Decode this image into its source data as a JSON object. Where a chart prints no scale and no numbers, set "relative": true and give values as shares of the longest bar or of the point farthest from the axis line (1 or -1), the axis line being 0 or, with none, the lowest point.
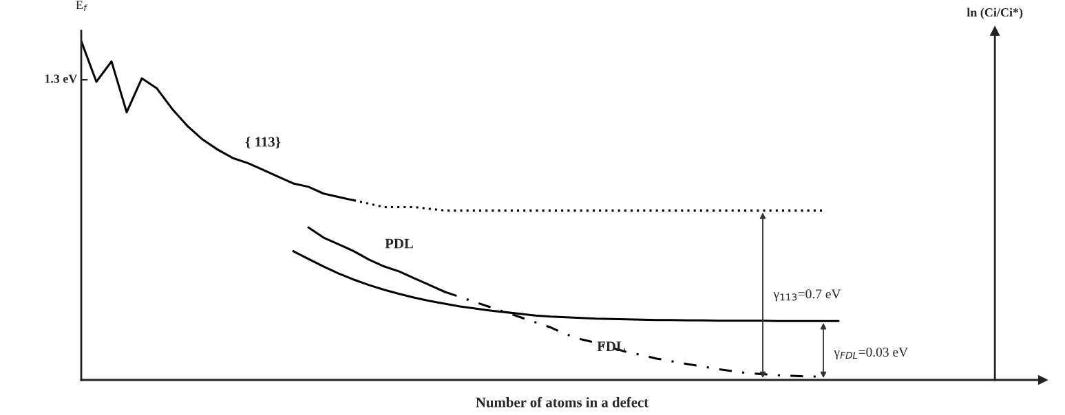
{
  "chart_data": {
    "type": "line",
    "relative": true,
    "ylabel": "E$_{f}$",
    "xlabel": "Number of atoms in a defect",
    "categories": [
      null,
      null,
      null,
      null,
      null,
      null,
      null,
      null,
      null,
      null,
      null,
      null,
      null,
      null,
      null,
      null,
      null,
      null,
      null,
      null,
      null,
      null,
      null,
      null,
      null,
      null,
      null,
      null,
      null,
      null,
      null,
      null,
      null,
      null,
      null,
      null,
      null,
      null,
      null,
      null,
      null,
      null,
      null,
      null,
      null,
      null,
      null,
      null,
      null,
      null,
      null
    ],
    "series": [
      {
        "name": "{ 113}",
        "color": "#000000",
        "line_style": "solid",
        "values": [
          1.0,
          0.88,
          0.94,
          0.79,
          0.89,
          0.86,
          0.8,
          0.75,
          0.71,
          0.68,
          0.655,
          0.64,
          0.62,
          0.6,
          0.58,
          0.57,
          0.55,
          0.54,
          0.53,
          null,
          null,
          null,
          null,
          null,
          null,
          null,
          null,
          null,
          null,
          null,
          null,
          null,
          null,
          null,
          null,
          null,
          null,
          null,
          null,
          null,
          null,
          null,
          null,
          null,
          null,
          null,
          null,
          null,
          null,
          null,
          null
        ]
      },
      {
        "color": "#000000",
        "line_style": "dotted",
        "values": [
          null,
          null,
          null,
          null,
          null,
          null,
          null,
          null,
          null,
          null,
          null,
          null,
          null,
          null,
          null,
          null,
          null,
          null,
          0.53,
          0.52,
          0.51,
          0.51,
          0.51,
          0.505,
          0.5,
          0.5,
          0.5,
          0.5,
          0.5,
          0.5,
          0.5,
          0.5,
          0.5,
          0.5,
          0.5,
          0.5,
          0.5,
          0.5,
          0.5,
          0.5,
          0.5,
          0.5,
          0.5,
          0.5,
          0.5,
          0.5,
          0.5,
          0.5,
          0.5,
          0.5,
          null
        ]
      },
      {
        "name": "PDL",
        "color": "#000000",
        "line_style": "solid",
        "values": [
          null,
          null,
          null,
          null,
          null,
          null,
          null,
          null,
          null,
          null,
          null,
          null,
          null,
          null,
          null,
          0.45,
          0.42,
          0.4,
          0.38,
          0.355,
          0.335,
          0.32,
          0.3,
          0.28,
          0.26,
          null,
          null,
          null,
          null,
          null,
          null,
          null,
          null,
          null,
          null,
          null,
          null,
          null,
          null,
          null,
          null,
          null,
          null,
          null,
          null,
          null,
          null,
          null,
          null,
          null,
          null
        ]
      },
      {
        "color": "#000000",
        "line_style": "dashed",
        "values": [
          null,
          null,
          null,
          null,
          null,
          null,
          null,
          null,
          null,
          null,
          null,
          null,
          null,
          null,
          null,
          null,
          null,
          null,
          null,
          null,
          null,
          null,
          null,
          null,
          0.26,
          0.245,
          0.23,
          0.215,
          0.2,
          0.185,
          0.17,
          0.155,
          0.135,
          0.12,
          0.11,
          0.095,
          0.083,
          0.073,
          0.063,
          0.055,
          0.047,
          0.04,
          0.032,
          0.026,
          0.02,
          0.017,
          0.014,
          0.012,
          0.01,
          0.01,
          null
        ]
      },
      {
        "name": "FDL",
        "color": "#000000",
        "line_style": "solid",
        "values": [
          null,
          null,
          null,
          null,
          null,
          null,
          null,
          null,
          null,
          null,
          null,
          null,
          null,
          null,
          0.38,
          0.357,
          0.335,
          0.314,
          0.296,
          0.28,
          0.266,
          0.254,
          0.243,
          0.233,
          0.225,
          0.217,
          0.211,
          0.205,
          0.2,
          0.195,
          0.19,
          0.187,
          0.185,
          0.183,
          0.181,
          0.18,
          0.179,
          0.178,
          0.177,
          0.177,
          0.176,
          0.176,
          0.175,
          0.175,
          0.175,
          0.175,
          0.174,
          0.174,
          0.174,
          0.174,
          0.174
        ]
      }
    ],
    "annotations": [
      "1.3 eV",
      "γ$_{113}$=0.7 eV",
      "γ$_{FDL}$=0.03 eV",
      "ln (Ci/Ci*)"
    ]
  }
}
